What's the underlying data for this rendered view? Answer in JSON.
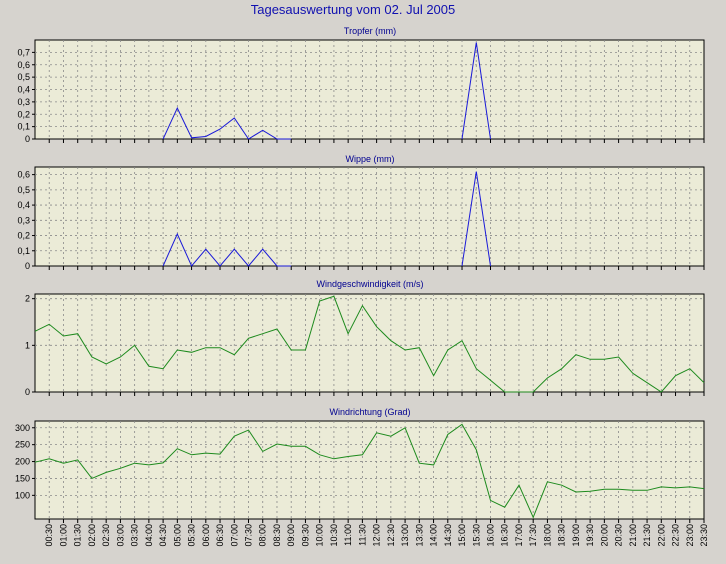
{
  "title": "Tagesauswertung vom 02. Jul 2005",
  "colors": {
    "background": "#d6d3ce",
    "plot_background": "#ebebd7",
    "grid": "#8a8a8a",
    "title_text": "#1010b0",
    "subplot_title_text": "#000090",
    "blue_series": "#1a1ad8",
    "green_series": "#1d8a1d"
  },
  "x_tick_labels": [
    "00:30",
    "01:00",
    "01:30",
    "02:00",
    "02:30",
    "03:00",
    "03:30",
    "04:00",
    "04:30",
    "05:00",
    "05:30",
    "06:00",
    "06:30",
    "07:00",
    "07:30",
    "08:00",
    "08:30",
    "09:00",
    "09:30",
    "10:00",
    "10:30",
    "11:00",
    "11:30",
    "12:00",
    "12:30",
    "13:00",
    "13:30",
    "14:00",
    "14:30",
    "15:00",
    "15:30",
    "16:00",
    "16:30",
    "17:00",
    "17:30",
    "18:00",
    "18:30",
    "19:00",
    "19:30",
    "20:00",
    "20:30",
    "21:00",
    "21:30",
    "22:00",
    "22:30",
    "23:00",
    "23:30"
  ],
  "chart_data": [
    {
      "type": "line",
      "title": "Tropfer (mm)",
      "ylim": [
        0,
        0.8
      ],
      "yticks": [
        0,
        0.1,
        0.2,
        0.3,
        0.4,
        0.5,
        0.6,
        0.7
      ],
      "ytick_labels": [
        "0",
        "0,1",
        "0,2",
        "0,3",
        "0,4",
        "0,5",
        "0,6",
        "0,7"
      ],
      "grid": true,
      "color": "blue",
      "values": [
        0,
        0,
        0,
        0,
        0,
        0,
        0,
        0,
        0,
        0.25,
        0.01,
        0.02,
        0.08,
        0.17,
        0,
        0.07,
        0,
        0,
        0,
        0,
        0,
        0,
        0,
        0,
        0,
        0,
        0,
        0,
        0,
        0,
        0.78,
        0,
        0,
        0,
        0,
        0,
        0,
        0,
        0,
        0,
        0,
        0,
        0,
        0,
        0,
        0,
        0
      ],
      "line_segments": [
        [
          8,
          17
        ],
        [
          29,
          31
        ]
      ]
    },
    {
      "type": "line",
      "title": "Wippe (mm)",
      "ylim": [
        0,
        0.65
      ],
      "yticks": [
        0,
        0.1,
        0.2,
        0.3,
        0.4,
        0.5,
        0.6
      ],
      "ytick_labels": [
        "0",
        "0,1",
        "0,2",
        "0,3",
        "0,4",
        "0,5",
        "0,6"
      ],
      "grid": true,
      "color": "blue",
      "values": [
        0,
        0,
        0,
        0,
        0,
        0,
        0,
        0,
        0,
        0.21,
        0,
        0.11,
        0,
        0.11,
        0,
        0.11,
        0,
        0,
        0,
        0,
        0,
        0,
        0,
        0,
        0,
        0,
        0,
        0,
        0,
        0,
        0.62,
        0,
        0,
        0,
        0,
        0,
        0,
        0,
        0,
        0,
        0,
        0,
        0,
        0,
        0,
        0,
        0
      ],
      "line_segments": [
        [
          8,
          17
        ],
        [
          29,
          31
        ]
      ]
    },
    {
      "type": "line",
      "title": "Windgeschwindigkeit (m/s)",
      "ylim": [
        0,
        2.1
      ],
      "yticks": [
        0,
        1,
        2
      ],
      "ytick_labels": [
        "0",
        "1",
        "2"
      ],
      "grid": true,
      "color": "green",
      "values": [
        1.3,
        1.45,
        1.2,
        1.25,
        0.75,
        0.6,
        0.75,
        1.0,
        0.55,
        0.5,
        0.9,
        0.85,
        0.95,
        0.95,
        0.8,
        1.15,
        1.25,
        1.35,
        0.9,
        0.9,
        1.95,
        2.05,
        1.25,
        1.85,
        1.4,
        1.1,
        0.9,
        0.95,
        0.35,
        0.9,
        1.1,
        0.5,
        0.25,
        0.0,
        0.0,
        0.0,
        0.3,
        0.5,
        0.8,
        0.7,
        0.7,
        0.75,
        0.4,
        0.2,
        0.0,
        0.35,
        0.5,
        0.2
      ],
      "x_offset": -1
    },
    {
      "type": "line",
      "title": "Windrichtung (Grad)",
      "ylim": [
        30,
        320
      ],
      "yticks": [
        100,
        150,
        200,
        250,
        300
      ],
      "ytick_labels": [
        "100",
        "150",
        "200",
        "250",
        "300"
      ],
      "grid": true,
      "color": "green",
      "values": [
        198,
        208,
        195,
        205,
        150,
        168,
        180,
        195,
        190,
        196,
        238,
        220,
        225,
        222,
        275,
        293,
        230,
        252,
        245,
        245,
        220,
        208,
        215,
        220,
        285,
        275,
        300,
        195,
        190,
        280,
        310,
        235,
        85,
        65,
        130,
        35,
        140,
        130,
        110,
        112,
        118,
        118,
        115,
        115,
        125,
        122,
        125,
        120
      ],
      "x_offset": -1
    }
  ]
}
